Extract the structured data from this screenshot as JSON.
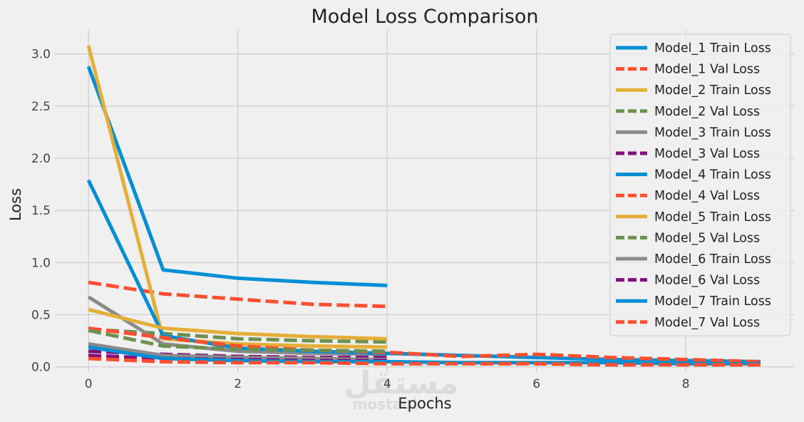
{
  "chart_data": {
    "type": "line",
    "title": "Model Loss Comparison",
    "xlabel": "Epochs",
    "ylabel": "Loss",
    "xlim": [
      -0.45,
      9.45
    ],
    "ylim": [
      -0.05,
      3.23
    ],
    "xticks": [
      0,
      2,
      4,
      6,
      8
    ],
    "yticks": [
      0.0,
      0.5,
      1.0,
      1.5,
      2.0,
      2.5,
      3.0
    ],
    "xtick_labels": [
      "0",
      "2",
      "4",
      "6",
      "8"
    ],
    "ytick_labels": [
      "0.0",
      "0.5",
      "1.0",
      "1.5",
      "2.0",
      "2.5",
      "3.0"
    ],
    "grid": true,
    "legend_position": "top-right",
    "watermark": "مستقل mostaql",
    "series": [
      {
        "name": "Model_1 Train Loss",
        "color": "#008fd5",
        "dash": "solid",
        "x": [
          0,
          1,
          2,
          3,
          4
        ],
        "values": [
          2.88,
          0.93,
          0.85,
          0.81,
          0.78
        ]
      },
      {
        "name": "Model_1 Val Loss",
        "color": "#fc4f30",
        "dash": "dashed",
        "x": [
          0,
          1,
          2,
          3,
          4
        ],
        "values": [
          0.81,
          0.7,
          0.65,
          0.6,
          0.58
        ]
      },
      {
        "name": "Model_2 Train Loss",
        "color": "#e5ae38",
        "dash": "solid",
        "x": [
          0,
          1,
          2,
          3,
          4
        ],
        "values": [
          3.08,
          0.27,
          0.22,
          0.2,
          0.19
        ]
      },
      {
        "name": "Model_2 Val Loss",
        "color": "#6d904f",
        "dash": "dashed",
        "x": [
          0,
          1,
          2,
          3,
          4
        ],
        "values": [
          0.36,
          0.32,
          0.27,
          0.25,
          0.24
        ]
      },
      {
        "name": "Model_3 Train Loss",
        "color": "#8b8b8b",
        "dash": "solid",
        "x": [
          0,
          1,
          2,
          3,
          4
        ],
        "values": [
          0.67,
          0.22,
          0.15,
          0.13,
          0.12
        ]
      },
      {
        "name": "Model_3 Val Loss",
        "color": "#810f7c",
        "dash": "dashed",
        "x": [
          0,
          1,
          2,
          3,
          4
        ],
        "values": [
          0.15,
          0.12,
          0.1,
          0.09,
          0.09
        ]
      },
      {
        "name": "Model_4 Train Loss",
        "color": "#008fd5",
        "dash": "solid",
        "x": [
          0,
          1,
          2,
          3,
          4,
          5,
          6,
          7,
          8,
          9
        ],
        "values": [
          1.79,
          0.3,
          0.18,
          0.15,
          0.13,
          0.11,
          0.09,
          0.07,
          0.06,
          0.05
        ]
      },
      {
        "name": "Model_4 Val Loss",
        "color": "#fc4f30",
        "dash": "dashed",
        "x": [
          0,
          1,
          2,
          3,
          4,
          5,
          6,
          7,
          8,
          9
        ],
        "values": [
          0.37,
          0.28,
          0.2,
          0.16,
          0.14,
          0.1,
          0.12,
          0.09,
          0.07,
          0.05
        ]
      },
      {
        "name": "Model_5 Train Loss",
        "color": "#e5ae38",
        "dash": "solid",
        "x": [
          0,
          1,
          2,
          3,
          4
        ],
        "values": [
          0.55,
          0.37,
          0.32,
          0.29,
          0.27
        ]
      },
      {
        "name": "Model_5 Val Loss",
        "color": "#6d904f",
        "dash": "dashed",
        "x": [
          0,
          1,
          2,
          3,
          4
        ],
        "values": [
          0.35,
          0.2,
          0.17,
          0.16,
          0.15
        ]
      },
      {
        "name": "Model_6 Train Loss",
        "color": "#8b8b8b",
        "dash": "solid",
        "x": [
          0,
          1,
          2,
          3,
          4
        ],
        "values": [
          0.22,
          0.11,
          0.09,
          0.08,
          0.07
        ]
      },
      {
        "name": "Model_6 Val Loss",
        "color": "#810f7c",
        "dash": "dashed",
        "x": [
          0,
          1,
          2,
          3,
          4
        ],
        "values": [
          0.11,
          0.08,
          0.07,
          0.06,
          0.06
        ]
      },
      {
        "name": "Model_7 Train Loss",
        "color": "#008fd5",
        "dash": "solid",
        "x": [
          0,
          1,
          2,
          3,
          4,
          5,
          6,
          7,
          8,
          9
        ],
        "values": [
          0.19,
          0.08,
          0.06,
          0.05,
          0.05,
          0.04,
          0.04,
          0.04,
          0.03,
          0.03
        ]
      },
      {
        "name": "Model_7 Val Loss",
        "color": "#fc4f30",
        "dash": "dashed",
        "x": [
          0,
          1,
          2,
          3,
          4,
          5,
          6,
          7,
          8,
          9
        ],
        "values": [
          0.08,
          0.05,
          0.04,
          0.04,
          0.03,
          0.03,
          0.03,
          0.02,
          0.02,
          0.02
        ]
      }
    ]
  }
}
